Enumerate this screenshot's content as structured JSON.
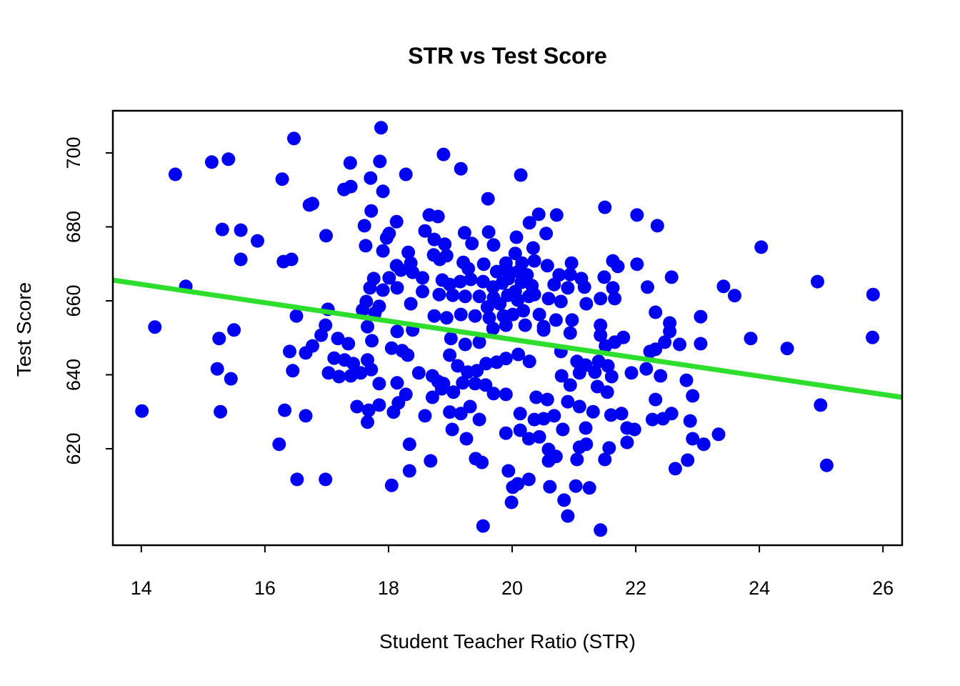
{
  "figure": {
    "title": "STR vs Test Score",
    "xlabel": "Student Teacher Ratio (STR)",
    "ylabel": "Test Score"
  },
  "chart_data": {
    "type": "scatter",
    "title": "STR vs Test Score",
    "xlabel": "Student Teacher Ratio (STR)",
    "ylabel": "Test Score",
    "xlim": [
      13.54,
      26.31
    ],
    "ylim": [
      593.9,
      711.4
    ],
    "x_ticks": [
      14,
      16,
      18,
      20,
      22,
      24,
      26
    ],
    "y_ticks": [
      620,
      640,
      660,
      680,
      700
    ],
    "grid": false,
    "legend": "none",
    "point_color": "#0202f2",
    "line_color": "#2dde2d",
    "regression_line": {
      "x1": 13.54,
      "y1": 665.6,
      "x2": 26.31,
      "y2": 633.9
    },
    "points": [
      [
        16.47,
        703.9
      ],
      [
        15.14,
        697.5
      ],
      [
        15.41,
        698.3
      ],
      [
        14.55,
        694.2
      ],
      [
        16.28,
        692.9
      ],
      [
        16.72,
        685.9
      ],
      [
        15.31,
        679.3
      ],
      [
        15.61,
        679.1
      ],
      [
        15.88,
        676.2
      ],
      [
        15.61,
        671.2
      ],
      [
        16.3,
        670.6
      ],
      [
        16.43,
        671.2
      ],
      [
        14.72,
        663.9
      ],
      [
        16.51,
        655.9
      ],
      [
        14.22,
        652.9
      ],
      [
        15.5,
        652.1
      ],
      [
        17.88,
        706.8
      ],
      [
        18.89,
        699.6
      ],
      [
        17.38,
        697.3
      ],
      [
        17.86,
        697.7
      ],
      [
        19.17,
        695.7
      ],
      [
        17.71,
        693.2
      ],
      [
        18.28,
        694.2
      ],
      [
        17.28,
        690.1
      ],
      [
        17.39,
        690.9
      ],
      [
        17.91,
        689.6
      ],
      [
        19.61,
        687.6
      ],
      [
        16.77,
        686.3
      ],
      [
        17.72,
        684.3
      ],
      [
        17.61,
        680.3
      ],
      [
        16.99,
        677.6
      ],
      [
        18.01,
        678.2
      ],
      [
        17.97,
        677.0
      ],
      [
        17.63,
        674.9
      ],
      [
        17.91,
        673.5
      ],
      [
        18.13,
        681.4
      ],
      [
        18.66,
        683.2
      ],
      [
        18.8,
        682.8
      ],
      [
        18.59,
        678.9
      ],
      [
        18.74,
        676.6
      ],
      [
        18.91,
        675.3
      ],
      [
        19.23,
        678.4
      ],
      [
        19.35,
        675.5
      ],
      [
        19.62,
        678.6
      ],
      [
        19.7,
        675.1
      ],
      [
        18.73,
        672.4
      ],
      [
        18.83,
        671.2
      ],
      [
        18.94,
        672.2
      ],
      [
        18.32,
        673.1
      ],
      [
        18.36,
        670.2
      ],
      [
        18.13,
        669.5
      ],
      [
        18.2,
        668.3
      ],
      [
        18.39,
        667.7
      ],
      [
        19.21,
        670.4
      ],
      [
        19.29,
        668.7
      ],
      [
        19.54,
        669.9
      ],
      [
        19.9,
        670.2
      ],
      [
        19.94,
        667.9
      ],
      [
        17.76,
        666.0
      ],
      [
        18.01,
        666.2
      ],
      [
        18.55,
        666.2
      ],
      [
        18.87,
        665.6
      ],
      [
        18.99,
        664.4
      ],
      [
        19.16,
        665.2
      ],
      [
        19.33,
        665.8
      ],
      [
        19.53,
        665.2
      ],
      [
        19.69,
        663.7
      ],
      [
        19.84,
        664.8
      ],
      [
        17.7,
        663.5
      ],
      [
        17.91,
        662.9
      ],
      [
        18.14,
        663.5
      ],
      [
        18.55,
        662.5
      ],
      [
        18.82,
        661.7
      ],
      [
        19.04,
        661.5
      ],
      [
        19.24,
        661.2
      ],
      [
        19.47,
        661.2
      ],
      [
        19.7,
        660.8
      ],
      [
        19.93,
        661.5
      ],
      [
        17.64,
        659.8
      ],
      [
        17.85,
        658.5
      ],
      [
        18.36,
        659.2
      ],
      [
        17.02,
        657.7
      ],
      [
        17.58,
        657.5
      ],
      [
        17.78,
        656.7
      ],
      [
        18.74,
        655.9
      ],
      [
        18.94,
        655.4
      ],
      [
        19.17,
        656.3
      ],
      [
        19.4,
        655.9
      ],
      [
        19.63,
        655.4
      ],
      [
        19.86,
        655.9
      ],
      [
        16.98,
        653.4
      ],
      [
        17.66,
        653.0
      ],
      [
        20.14,
        694.0
      ],
      [
        21.5,
        685.3
      ],
      [
        22.02,
        683.2
      ],
      [
        22.35,
        680.3
      ],
      [
        20.43,
        683.4
      ],
      [
        20.72,
        683.2
      ],
      [
        20.28,
        681.1
      ],
      [
        20.55,
        678.2
      ],
      [
        20.07,
        677.2
      ],
      [
        20.34,
        674.3
      ],
      [
        20.05,
        672.8
      ],
      [
        20.16,
        670.2
      ],
      [
        20.36,
        670.8
      ],
      [
        20.57,
        669.5
      ],
      [
        20.96,
        670.2
      ],
      [
        21.63,
        670.8
      ],
      [
        21.71,
        669.3
      ],
      [
        22.02,
        669.9
      ],
      [
        20.1,
        667.9
      ],
      [
        20.24,
        667.0
      ],
      [
        20.76,
        667.0
      ],
      [
        20.94,
        667.1
      ],
      [
        21.12,
        666.0
      ],
      [
        21.49,
        666.4
      ],
      [
        22.58,
        666.4
      ],
      [
        20.15,
        665.0
      ],
      [
        20.32,
        664.1
      ],
      [
        20.68,
        664.4
      ],
      [
        20.9,
        663.5
      ],
      [
        21.17,
        663.7
      ],
      [
        21.63,
        663.5
      ],
      [
        22.19,
        663.7
      ],
      [
        20.05,
        662.5
      ],
      [
        20.36,
        661.7
      ],
      [
        20.59,
        660.6
      ],
      [
        20.79,
        659.8
      ],
      [
        21.2,
        659.2
      ],
      [
        21.43,
        660.6
      ],
      [
        21.66,
        660.6
      ],
      [
        20.18,
        657.3
      ],
      [
        20.44,
        656.3
      ],
      [
        20.71,
        654.8
      ],
      [
        20.97,
        654.8
      ],
      [
        22.32,
        656.9
      ],
      [
        23.05,
        655.7
      ],
      [
        22.55,
        654.0
      ],
      [
        20.51,
        653.0
      ],
      [
        21.43,
        653.4
      ],
      [
        24.03,
        674.5
      ],
      [
        23.42,
        663.9
      ],
      [
        23.6,
        661.4
      ],
      [
        24.94,
        665.2
      ],
      [
        25.84,
        661.7
      ],
      [
        15.26,
        649.8
      ],
      [
        16.4,
        646.3
      ],
      [
        16.66,
        645.9
      ],
      [
        15.23,
        641.6
      ],
      [
        15.45,
        638.9
      ],
      [
        16.45,
        641.1
      ],
      [
        14.01,
        630.2
      ],
      [
        15.28,
        630.0
      ],
      [
        16.32,
        630.4
      ],
      [
        16.66,
        628.9
      ],
      [
        16.23,
        621.2
      ],
      [
        16.52,
        611.7
      ],
      [
        16.91,
        650.7
      ],
      [
        17.18,
        649.8
      ],
      [
        17.35,
        648.4
      ],
      [
        17.73,
        649.2
      ],
      [
        18.14,
        651.7
      ],
      [
        18.39,
        652.1
      ],
      [
        19.01,
        649.8
      ],
      [
        19.24,
        648.2
      ],
      [
        19.47,
        648.8
      ],
      [
        18.05,
        647.2
      ],
      [
        18.22,
        646.5
      ],
      [
        18.31,
        645.3
      ],
      [
        17.12,
        644.5
      ],
      [
        17.29,
        644.0
      ],
      [
        17.43,
        643.0
      ],
      [
        17.66,
        644.0
      ],
      [
        17.03,
        640.5
      ],
      [
        17.2,
        639.5
      ],
      [
        17.39,
        639.7
      ],
      [
        17.55,
        640.5
      ],
      [
        17.72,
        641.4
      ],
      [
        17.85,
        637.6
      ],
      [
        18.14,
        637.8
      ],
      [
        18.49,
        640.5
      ],
      [
        18.71,
        639.7
      ],
      [
        18.8,
        638.2
      ],
      [
        18.89,
        637.6
      ],
      [
        18.99,
        645.3
      ],
      [
        19.12,
        642.4
      ],
      [
        19.28,
        640.7
      ],
      [
        19.43,
        641.1
      ],
      [
        19.58,
        643.0
      ],
      [
        19.75,
        643.4
      ],
      [
        19.9,
        644.4
      ],
      [
        19.05,
        635.3
      ],
      [
        19.2,
        637.8
      ],
      [
        19.4,
        637.6
      ],
      [
        19.57,
        637.2
      ],
      [
        19.7,
        634.9
      ],
      [
        19.9,
        634.7
      ],
      [
        18.28,
        634.7
      ],
      [
        18.71,
        633.9
      ],
      [
        18.86,
        636.2
      ],
      [
        17.49,
        631.4
      ],
      [
        17.68,
        630.4
      ],
      [
        17.85,
        631.8
      ],
      [
        18.08,
        629.9
      ],
      [
        18.16,
        632.4
      ],
      [
        18.59,
        628.9
      ],
      [
        18.99,
        629.9
      ],
      [
        19.17,
        629.5
      ],
      [
        19.32,
        631.4
      ],
      [
        19.47,
        627.9
      ],
      [
        19.03,
        625.2
      ],
      [
        19.26,
        622.7
      ],
      [
        19.41,
        617.3
      ],
      [
        19.51,
        616.3
      ],
      [
        18.34,
        621.2
      ],
      [
        18.68,
        616.7
      ],
      [
        18.34,
        614.0
      ],
      [
        16.98,
        611.7
      ],
      [
        18.05,
        610.1
      ],
      [
        19.53,
        599.1
      ],
      [
        17.66,
        627.2
      ],
      [
        19.9,
        624.2
      ],
      [
        16.77,
        647.8
      ],
      [
        20.51,
        652.1
      ],
      [
        20.94,
        651.3
      ],
      [
        21.43,
        650.7
      ],
      [
        21.8,
        650.1
      ],
      [
        22.55,
        651.7
      ],
      [
        22.71,
        648.2
      ],
      [
        23.05,
        648.4
      ],
      [
        22.47,
        648.8
      ],
      [
        20.1,
        645.5
      ],
      [
        20.28,
        643.6
      ],
      [
        20.79,
        646.3
      ],
      [
        21.05,
        643.6
      ],
      [
        21.19,
        642.6
      ],
      [
        21.51,
        647.8
      ],
      [
        21.66,
        648.8
      ],
      [
        22.23,
        646.3
      ],
      [
        22.32,
        646.9
      ],
      [
        21.93,
        640.5
      ],
      [
        22.17,
        641.6
      ],
      [
        22.4,
        639.7
      ],
      [
        22.82,
        638.5
      ],
      [
        22.92,
        634.3
      ],
      [
        22.32,
        633.3
      ],
      [
        20.8,
        639.7
      ],
      [
        20.94,
        637.2
      ],
      [
        21.09,
        640.5
      ],
      [
        21.34,
        640.7
      ],
      [
        21.4,
        643.6
      ],
      [
        21.55,
        642.4
      ],
      [
        21.61,
        639.5
      ],
      [
        21.38,
        636.8
      ],
      [
        21.54,
        635.3
      ],
      [
        20.39,
        633.9
      ],
      [
        20.57,
        633.3
      ],
      [
        20.9,
        632.7
      ],
      [
        21.09,
        631.4
      ],
      [
        21.31,
        630.0
      ],
      [
        20.13,
        629.5
      ],
      [
        20.36,
        627.9
      ],
      [
        20.51,
        628.1
      ],
      [
        20.68,
        628.9
      ],
      [
        20.82,
        625.2
      ],
      [
        21.19,
        625.6
      ],
      [
        21.6,
        629.1
      ],
      [
        21.77,
        629.5
      ],
      [
        21.86,
        625.6
      ],
      [
        21.98,
        625.2
      ],
      [
        22.27,
        627.9
      ],
      [
        22.44,
        628.1
      ],
      [
        22.58,
        629.5
      ],
      [
        22.88,
        627.5
      ],
      [
        20.13,
        625.0
      ],
      [
        20.27,
        622.7
      ],
      [
        20.44,
        623.2
      ],
      [
        20.59,
        619.8
      ],
      [
        20.71,
        617.9
      ],
      [
        21.09,
        620.4
      ],
      [
        21.2,
        621.2
      ],
      [
        21.57,
        620.2
      ],
      [
        21.86,
        621.7
      ],
      [
        22.92,
        622.7
      ],
      [
        23.1,
        621.2
      ],
      [
        22.64,
        614.6
      ],
      [
        22.84,
        616.9
      ],
      [
        20.27,
        611.7
      ],
      [
        20.09,
        610.5
      ],
      [
        20.61,
        609.7
      ],
      [
        21.03,
        609.9
      ],
      [
        21.25,
        609.4
      ],
      [
        20.84,
        606.1
      ],
      [
        20.9,
        601.8
      ],
      [
        21.43,
        598.0
      ],
      [
        19.94,
        614.0
      ],
      [
        20.01,
        609.6
      ],
      [
        19.99,
        605.5
      ],
      [
        20.59,
        616.7
      ],
      [
        21.05,
        617.1
      ],
      [
        21.5,
        617.1
      ],
      [
        23.86,
        649.8
      ],
      [
        24.45,
        647.1
      ],
      [
        25.83,
        650.1
      ],
      [
        24.99,
        631.8
      ],
      [
        23.34,
        623.9
      ],
      [
        25.09,
        615.5
      ],
      [
        19.75,
        667.9
      ],
      [
        19.94,
        666.0
      ],
      [
        20.09,
        660.2
      ],
      [
        19.8,
        659.2
      ],
      [
        20.01,
        656.3
      ],
      [
        20.21,
        653.4
      ],
      [
        19.69,
        652.5
      ],
      [
        19.9,
        653.4
      ],
      [
        19.6,
        658.3
      ],
      [
        20.27,
        661.2
      ]
    ]
  }
}
